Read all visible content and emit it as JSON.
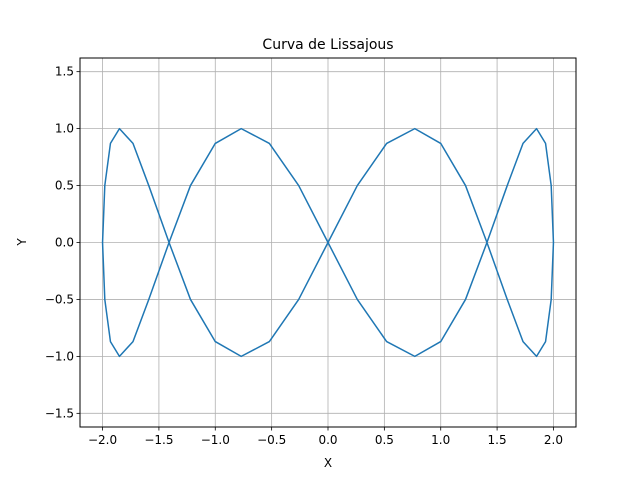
{
  "chart_data": {
    "type": "line",
    "title": "Curva de Lissajous",
    "xlabel": "X",
    "ylabel": "Y",
    "xlim": [
      -2.2,
      2.2
    ],
    "ylim": [
      -1.62,
      1.62
    ],
    "xticks": [
      -2.0,
      -1.5,
      -1.0,
      -0.5,
      0.0,
      0.5,
      1.0,
      1.5,
      2.0
    ],
    "xtick_labels": [
      "−2.0",
      "−1.5",
      "−1.0",
      "−0.5",
      "0.0",
      "0.5",
      "1.0",
      "1.5",
      "2.0"
    ],
    "yticks": [
      -1.5,
      -1.0,
      -0.5,
      0.0,
      0.5,
      1.0,
      1.5
    ],
    "ytick_labels": [
      "−1.5",
      "−1.0",
      "−0.5",
      "0.0",
      "0.5",
      "1.0",
      "1.5"
    ],
    "grid": true,
    "series": [
      {
        "color": "#1f77b4",
        "x": [
          2.0,
          1.98,
          1.93,
          1.85,
          1.73,
          1.59,
          1.41,
          1.22,
          1.0,
          0.77,
          0.52,
          0.26,
          0.0,
          -0.26,
          -0.52,
          -0.77,
          -1.0,
          -1.22,
          -1.41,
          -1.59,
          -1.73,
          -1.85,
          -1.93,
          -1.98,
          -2.0,
          -1.98,
          -1.93,
          -1.85,
          -1.73,
          -1.59,
          -1.41,
          -1.22,
          -1.0,
          -0.77,
          -0.52,
          -0.26,
          0.0,
          0.26,
          0.52,
          0.77,
          1.0,
          1.22,
          1.41,
          1.59,
          1.73,
          1.85,
          1.93,
          1.98,
          2.0
        ],
        "y": [
          0.0,
          0.5,
          0.87,
          1.0,
          0.87,
          0.5,
          0.0,
          -0.5,
          -0.87,
          -1.0,
          -0.87,
          -0.5,
          0.0,
          0.5,
          0.87,
          1.0,
          0.87,
          0.5,
          0.0,
          -0.5,
          -0.87,
          -1.0,
          -0.87,
          -0.5,
          0.0,
          0.5,
          0.87,
          1.0,
          0.87,
          0.5,
          0.0,
          -0.5,
          -0.87,
          -1.0,
          -0.87,
          -0.5,
          0.0,
          0.5,
          0.87,
          1.0,
          0.87,
          0.5,
          0.0,
          -0.5,
          -0.87,
          -1.0,
          -0.87,
          -0.5,
          0.0
        ]
      }
    ]
  }
}
